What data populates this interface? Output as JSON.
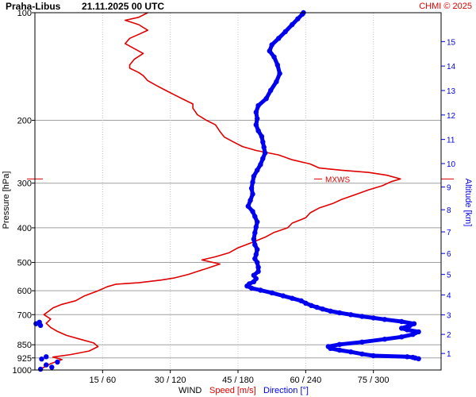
{
  "header": {
    "station": "Praha-Libus",
    "datetime": "21.11.2025 00 UTC",
    "credit": "CHMI © 2025"
  },
  "chart_data": {
    "type": "line",
    "title": "Praha-Libus   21.11.2025 00 UTC",
    "ylabel": "Pressure [hPa]",
    "y2label": "Altitude [km]",
    "xlabel": {
      "prefix": "WIND",
      "speed": "Speed [m/s]",
      "direction": "Direction [°]"
    },
    "pressure_ticks": [
      "100",
      "200",
      "300",
      "400",
      "500",
      "600",
      "700",
      "850",
      "925",
      "1000"
    ],
    "pressure_tick_values": [
      100,
      200,
      300,
      400,
      500,
      600,
      700,
      850,
      925,
      1000
    ],
    "altitude_ticks": [
      "1",
      "2",
      "3",
      "4",
      "5",
      "6",
      "7",
      "8",
      "9",
      "10",
      "11",
      "12",
      "13",
      "14",
      "15"
    ],
    "x_ticks": [
      "15 / 60",
      "30 / 120",
      "45 / 180",
      "60 / 240",
      "75 / 300"
    ],
    "x_tick_speeds": [
      15,
      30,
      45,
      60,
      75
    ],
    "x_tick_directions": [
      60,
      120,
      180,
      240,
      300
    ],
    "xlim_speed": [
      0,
      90
    ],
    "xlim_direction": [
      0,
      360
    ],
    "ylim_pressure": [
      1000,
      100
    ],
    "annotation": {
      "label": "MXWS",
      "pressure": 292
    },
    "series": [
      {
        "name": "Speed [m/s]",
        "color": "#e00000",
        "unit": "m/s",
        "points": [
          [
            1.5,
            990
          ],
          [
            3.5,
            960
          ],
          [
            6,
            935
          ],
          [
            4,
            920
          ],
          [
            8,
            905
          ],
          [
            12,
            885
          ],
          [
            14,
            860
          ],
          [
            13,
            840
          ],
          [
            10,
            820
          ],
          [
            7,
            800
          ],
          [
            5,
            780
          ],
          [
            3.5,
            760
          ],
          [
            2.5,
            740
          ],
          [
            3.5,
            720
          ],
          [
            2,
            700
          ],
          [
            3,
            685
          ],
          [
            4,
            670
          ],
          [
            6,
            655
          ],
          [
            9,
            640
          ],
          [
            11,
            620
          ],
          [
            14,
            600
          ],
          [
            16,
            585
          ],
          [
            18,
            575
          ],
          [
            23,
            570
          ],
          [
            28,
            560
          ],
          [
            31,
            552
          ],
          [
            34,
            540
          ],
          [
            36,
            530
          ],
          [
            38,
            520
          ],
          [
            41,
            505
          ],
          [
            37,
            492
          ],
          [
            40,
            482
          ],
          [
            43,
            470
          ],
          [
            45,
            455
          ],
          [
            48,
            440
          ],
          [
            51,
            425
          ],
          [
            53,
            412
          ],
          [
            56,
            400
          ],
          [
            57,
            388
          ],
          [
            60,
            375
          ],
          [
            61,
            363
          ],
          [
            63,
            352
          ],
          [
            66,
            342
          ],
          [
            68,
            333
          ],
          [
            71,
            323
          ],
          [
            74,
            313
          ],
          [
            77,
            305
          ],
          [
            79,
            297
          ],
          [
            81,
            292
          ],
          [
            78,
            285
          ],
          [
            74,
            280
          ],
          [
            68,
            276
          ],
          [
            63,
            272
          ],
          [
            61,
            265
          ],
          [
            57,
            258
          ],
          [
            54,
            250
          ],
          [
            49,
            243
          ],
          [
            46,
            237
          ],
          [
            44,
            230
          ],
          [
            42,
            223
          ],
          [
            41,
            215
          ],
          [
            40,
            206
          ],
          [
            38,
            200
          ],
          [
            36,
            193
          ],
          [
            35,
            185
          ],
          [
            35,
            180
          ],
          [
            33,
            175
          ],
          [
            31,
            170
          ],
          [
            29,
            165
          ],
          [
            27,
            160
          ],
          [
            25,
            155
          ],
          [
            24,
            150
          ],
          [
            23,
            147
          ],
          [
            21,
            143
          ],
          [
            21,
            140
          ],
          [
            22,
            135
          ],
          [
            24,
            130
          ],
          [
            22,
            126
          ],
          [
            20,
            122
          ],
          [
            21,
            118
          ],
          [
            23,
            115
          ],
          [
            25,
            112
          ],
          [
            23,
            108
          ],
          [
            20,
            105
          ],
          [
            23,
            103
          ],
          [
            25,
            100
          ]
        ]
      },
      {
        "name": "Direction [°]",
        "color": "#0000ee",
        "unit": "°",
        "points": [
          [
            5,
            995
          ],
          [
            15,
            982
          ],
          [
            10,
            968
          ],
          [
            20,
            950
          ],
          [
            6,
            932
          ],
          [
            10,
            918
          ],
          [
            5,
            750
          ],
          [
            1,
            742
          ],
          [
            4,
            735
          ],
          [
            337,
            925
          ],
          [
            340,
            930
          ],
          [
            335,
            922
          ],
          [
            330,
            918
          ],
          [
            300,
            912
          ],
          [
            290,
            902
          ],
          [
            280,
            890
          ],
          [
            270,
            880
          ],
          [
            262,
            870
          ],
          [
            260,
            860
          ],
          [
            270,
            848
          ],
          [
            290,
            835
          ],
          [
            310,
            820
          ],
          [
            325,
            808
          ],
          [
            335,
            795
          ],
          [
            340,
            782
          ],
          [
            330,
            772
          ],
          [
            325,
            764
          ],
          [
            332,
            752
          ],
          [
            336,
            742
          ],
          [
            325,
            732
          ],
          [
            310,
            722
          ],
          [
            300,
            715
          ],
          [
            290,
            708
          ],
          [
            280,
            700
          ],
          [
            270,
            692
          ],
          [
            262,
            684
          ],
          [
            255,
            675
          ],
          [
            250,
            668
          ],
          [
            245,
            660
          ],
          [
            240,
            650
          ],
          [
            236,
            640
          ],
          [
            228,
            630
          ],
          [
            220,
            620
          ],
          [
            210,
            608
          ],
          [
            200,
            598
          ],
          [
            192,
            590
          ],
          [
            188,
            582
          ],
          [
            190,
            574
          ],
          [
            194,
            566
          ],
          [
            196,
            555
          ],
          [
            194,
            543
          ],
          [
            198,
            530
          ],
          [
            198,
            516
          ],
          [
            197,
            500
          ],
          [
            195,
            488
          ],
          [
            196,
            475
          ],
          [
            197,
            460
          ],
          [
            195,
            446
          ],
          [
            194,
            430
          ],
          [
            195,
            413
          ],
          [
            196,
            398
          ],
          [
            197,
            385
          ],
          [
            195,
            372
          ],
          [
            193,
            360
          ],
          [
            189,
            348
          ],
          [
            191,
            335
          ],
          [
            193,
            322
          ],
          [
            192,
            310
          ],
          [
            193,
            298
          ],
          [
            194,
            287
          ],
          [
            197,
            276
          ],
          [
            200,
            266
          ],
          [
            202,
            256
          ],
          [
            204,
            247
          ],
          [
            203,
            238
          ],
          [
            202,
            230
          ],
          [
            201,
            222
          ],
          [
            198,
            214
          ],
          [
            196,
            206
          ],
          [
            197,
            198
          ],
          [
            196,
            190
          ],
          [
            198,
            182
          ],
          [
            205,
            174
          ],
          [
            209,
            165
          ],
          [
            214,
            156
          ],
          [
            217,
            148
          ],
          [
            215,
            140
          ],
          [
            212,
            133
          ],
          [
            208,
            128
          ],
          [
            210,
            123
          ],
          [
            216,
            118
          ],
          [
            222,
            113
          ],
          [
            228,
            108
          ],
          [
            233,
            104
          ],
          [
            237,
            101
          ],
          [
            238,
            100
          ]
        ]
      }
    ]
  }
}
